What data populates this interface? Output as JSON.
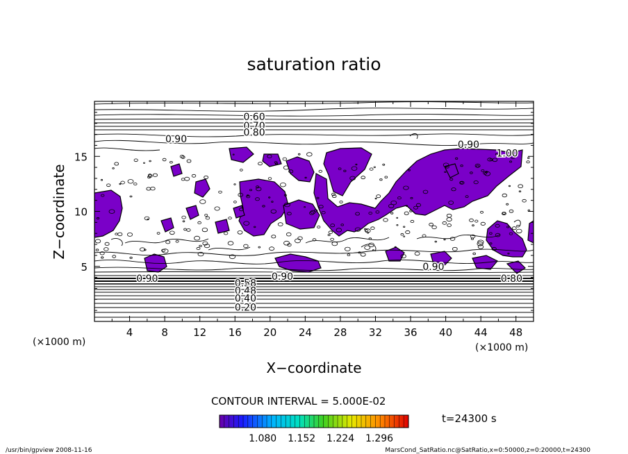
{
  "chart_data": {
    "type": "contour",
    "title": "saturation ratio",
    "xlabel": "X−coordinate",
    "ylabel": "Z−coordinate",
    "x_unit_left": "(×1000 m)",
    "x_unit_right": "(×1000 m)",
    "xlim": [
      0,
      50
    ],
    "ylim": [
      0,
      20
    ],
    "x_ticks": [
      4,
      8,
      12,
      16,
      20,
      24,
      28,
      32,
      36,
      40,
      44,
      48
    ],
    "y_ticks": [
      5,
      10,
      15
    ],
    "contour_labels": [
      {
        "text": "0.60",
        "x": 18.2,
        "y": 18.6
      },
      {
        "text": "0.70",
        "x": 18.2,
        "y": 17.8
      },
      {
        "text": "0.80",
        "x": 18.2,
        "y": 17.2
      },
      {
        "text": "0.90",
        "x": 9.3,
        "y": 16.6
      },
      {
        "text": "0.90",
        "x": 42.6,
        "y": 16.1
      },
      {
        "text": "1.00",
        "x": 47.0,
        "y": 15.3
      },
      {
        "text": "0.90",
        "x": 6.0,
        "y": 3.9
      },
      {
        "text": "0.90",
        "x": 21.4,
        "y": 4.1
      },
      {
        "text": "0.80",
        "x": 47.5,
        "y": 3.9
      },
      {
        "text": "0.90",
        "x": 38.6,
        "y": 5.0
      },
      {
        "text": "0.58",
        "x": 17.2,
        "y": 3.5
      },
      {
        "text": "0.48",
        "x": 17.2,
        "y": 2.8
      },
      {
        "text": "0.40",
        "x": 17.2,
        "y": 2.1
      },
      {
        "text": "0.20",
        "x": 17.2,
        "y": 1.3
      }
    ],
    "contour_interval_text": "CONTOUR INTERVAL = 5.000E-02",
    "colorbar_ticks": [
      "1.080",
      "1.152",
      "1.224",
      "1.296"
    ],
    "colorbar_range": [
      1.0,
      1.35
    ],
    "time_label": "t=24300 s",
    "shade_color": "#7a00c8"
  },
  "footer": {
    "left": "/usr/bin/gpview   2008-11-16",
    "right": "MarsCond_SatRatio.nc@SatRatio,x=0:50000,z=0:20000,t=24300"
  }
}
